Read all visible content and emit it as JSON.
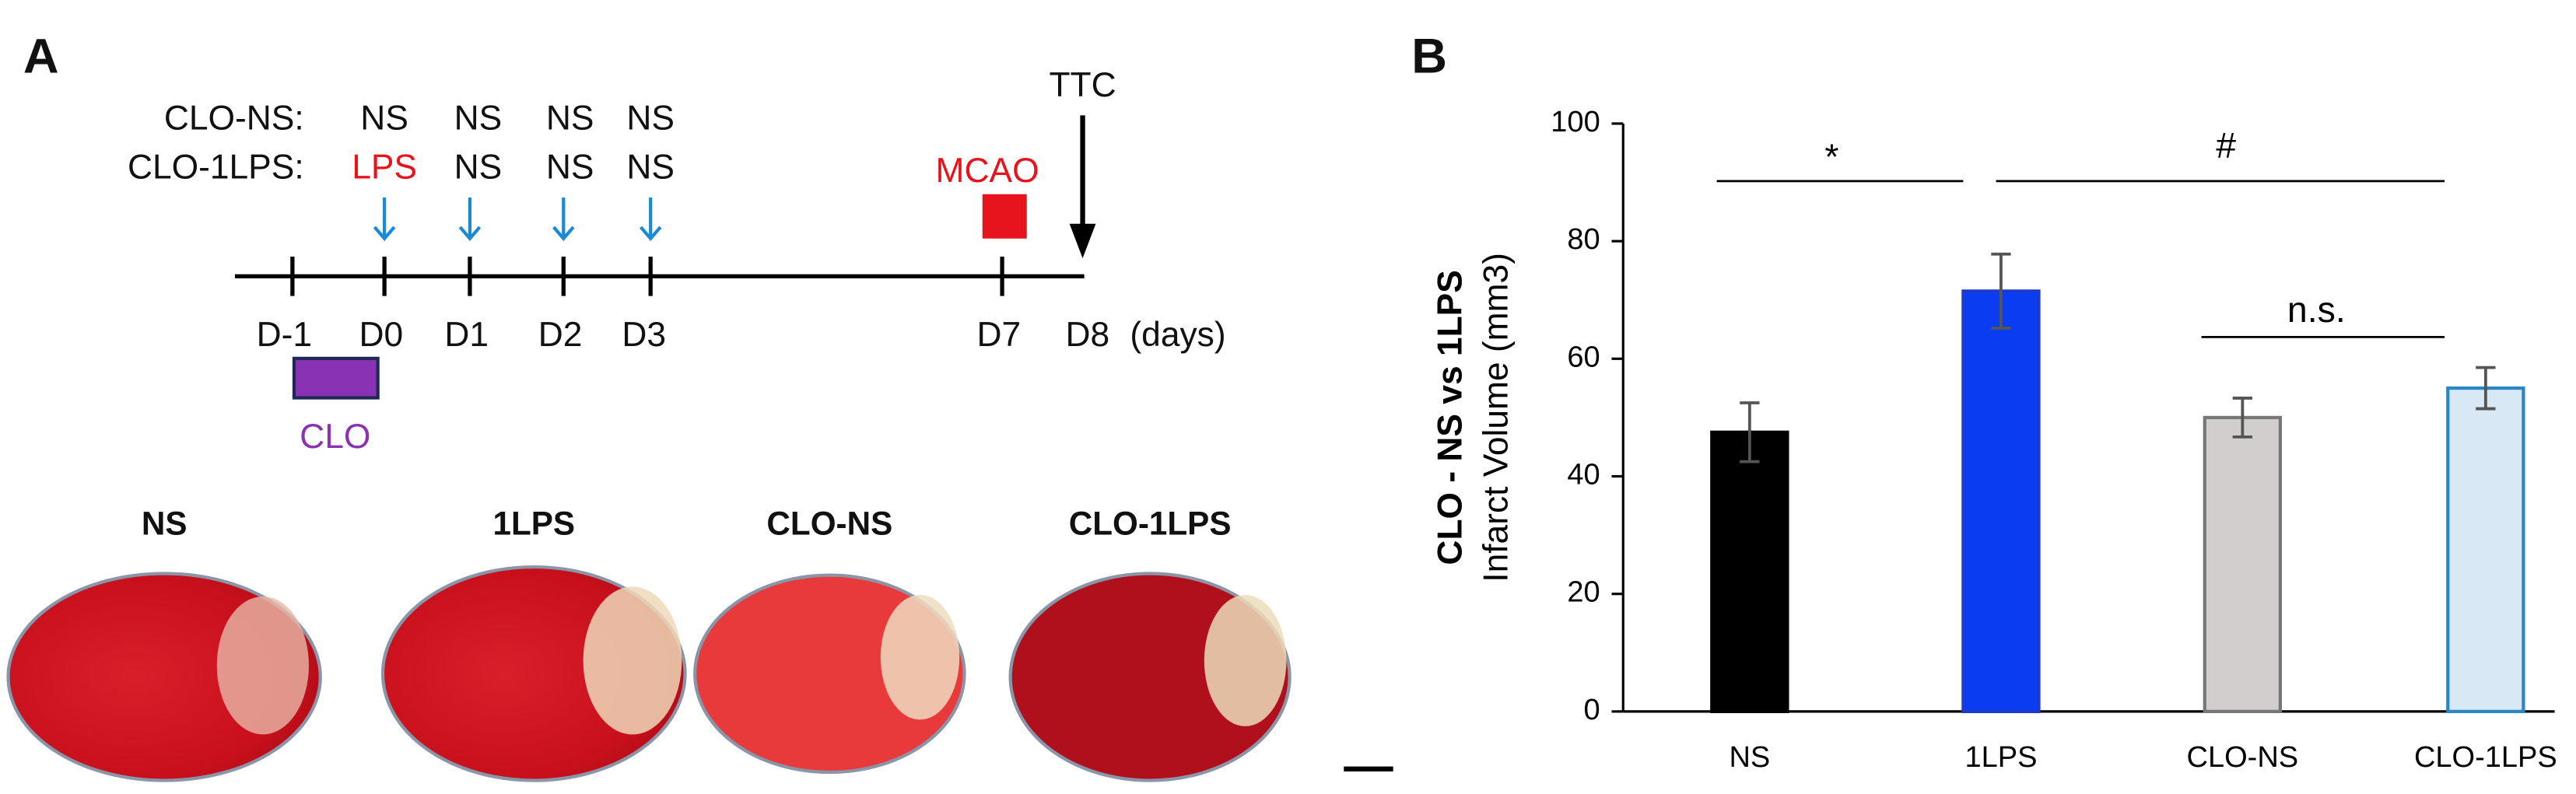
{
  "panel_a": {
    "label": "A",
    "rows": [
      {
        "name": "CLO-NS:",
        "doses": [
          "NS",
          "NS",
          "NS",
          "NS"
        ]
      },
      {
        "name": "CLO-1LPS:",
        "doses": [
          "LPS",
          "NS",
          "NS",
          "NS"
        ]
      }
    ],
    "days": [
      "D-1",
      "D0",
      "D1",
      "D2",
      "D3",
      "D7",
      "D8"
    ],
    "days_unit": "(days)",
    "clo": "CLO",
    "mcao": "MCAO",
    "ttc": "TTC",
    "images": [
      "NS",
      "1LPS",
      "CLO-NS",
      "CLO-1LPS"
    ]
  },
  "chart_data": {
    "type": "bar",
    "panel_label": "B",
    "ylabel": [
      "CLO - NS vs 1LPS",
      "Infarct Volume (mm3)"
    ],
    "categories": [
      "NS",
      "1LPS",
      "CLO-NS",
      "CLO-1LPS"
    ],
    "values": [
      47.5,
      71.5,
      50,
      55
    ],
    "errors": [
      5,
      6.3,
      3.3,
      3.5
    ],
    "colors": [
      "#000000",
      "#0a3cf2",
      "#d2cece",
      "#d8e8f5"
    ],
    "edge_colors": [
      "#000000",
      "#1a3ad0",
      "#777777",
      "#2a86c5"
    ],
    "ylim": [
      0,
      100
    ],
    "yticks": [
      0,
      20,
      40,
      60,
      80,
      100
    ],
    "annotations": [
      "*",
      "#",
      "n.s."
    ]
  }
}
